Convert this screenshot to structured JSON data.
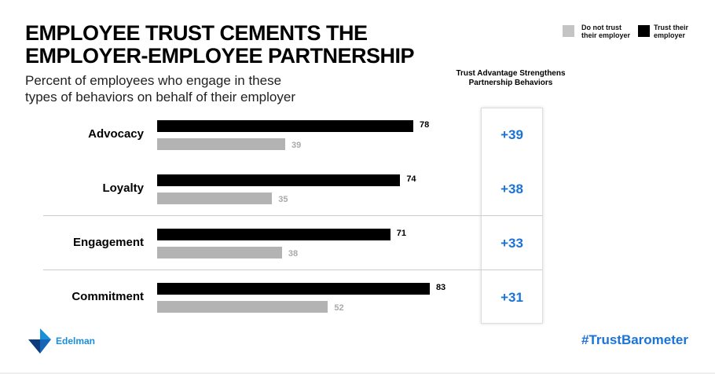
{
  "chart_data": {
    "type": "bar",
    "title": "EMPLOYEE TRUST CEMENTS THE\nEMPLOYER-EMPLOYEE PARTNERSHIP",
    "subtitle": "Percent of employees who engage in these types of behaviors on behalf of their employer",
    "categories": [
      "Advocacy",
      "Loyalty",
      "Engagement",
      "Commitment"
    ],
    "series": [
      {
        "name": "Trust their employer",
        "color": "#000000",
        "values": [
          78,
          74,
          71,
          83
        ]
      },
      {
        "name": "Do not trust their employer",
        "color": "#b3b3b3",
        "values": [
          39,
          35,
          38,
          52
        ]
      }
    ],
    "advantage_header": "Trust Advantage Strengthens Partnership Behaviors",
    "advantage": [
      "+39",
      "+38",
      "+33",
      "+31"
    ],
    "legend_placement": "top-right",
    "xlim": [
      0,
      100
    ]
  },
  "legend": {
    "do_not_trust": "Do not trust their employer",
    "trust": "Trust their employer"
  },
  "brand": {
    "logo": "Edelman",
    "hashtag": "#TrustBarometer",
    "accent": "#1a73d9"
  }
}
